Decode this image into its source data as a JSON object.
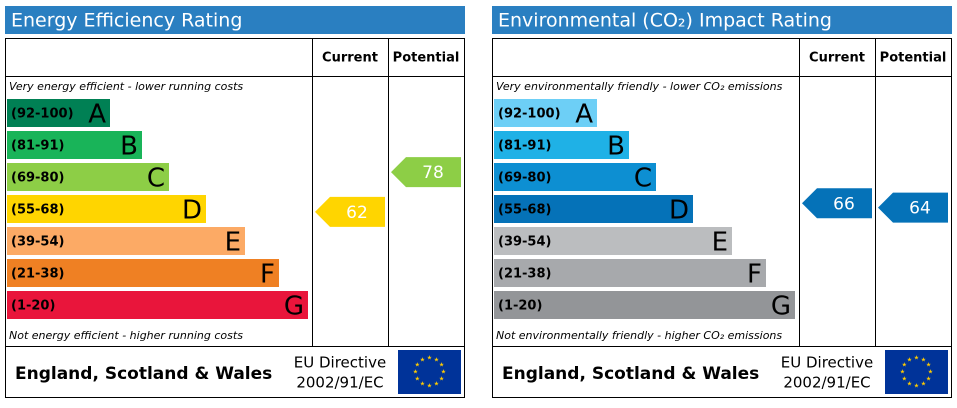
{
  "panels": [
    {
      "title": "Energy Efficiency Rating",
      "columns": [
        "Current",
        "Potential"
      ],
      "top_note": "Very energy efficient - lower running costs",
      "bottom_note": "Not energy efficient - higher running costs",
      "bands": [
        {
          "label": "(92-100)",
          "letter": "A",
          "min": 92,
          "max": 100,
          "color": "#008054"
        },
        {
          "label": "(81-91)",
          "letter": "B",
          "min": 81,
          "max": 91,
          "color": "#19b459"
        },
        {
          "label": "(69-80)",
          "letter": "C",
          "min": 69,
          "max": 80,
          "color": "#8dce46"
        },
        {
          "label": "(55-68)",
          "letter": "D",
          "min": 55,
          "max": 68,
          "color": "#ffd500"
        },
        {
          "label": "(39-54)",
          "letter": "E",
          "min": 39,
          "max": 54,
          "color": "#fcaa65"
        },
        {
          "label": "(21-38)",
          "letter": "F",
          "min": 21,
          "max": 38,
          "color": "#ef8023"
        },
        {
          "label": "(1-20)",
          "letter": "G",
          "min": 1,
          "max": 20,
          "color": "#e9153b"
        }
      ],
      "current": 62,
      "potential": 78,
      "footer": {
        "region": "England, Scotland & Wales",
        "directive": "EU Directive",
        "code": "2002/91/EC"
      }
    },
    {
      "title": "Environmental (CO₂) Impact Rating",
      "columns": [
        "Current",
        "Potential"
      ],
      "top_note": "Very environmentally friendly - lower CO₂ emissions",
      "bottom_note": "Not environmentally friendly - higher CO₂ emissions",
      "bands": [
        {
          "label": "(92-100)",
          "letter": "A",
          "min": 92,
          "max": 100,
          "color": "#6dcff6"
        },
        {
          "label": "(81-91)",
          "letter": "B",
          "min": 81,
          "max": 91,
          "color": "#1fb1e6"
        },
        {
          "label": "(69-80)",
          "letter": "C",
          "min": 69,
          "max": 80,
          "color": "#0d8fd2"
        },
        {
          "label": "(55-68)",
          "letter": "D",
          "min": 55,
          "max": 68,
          "color": "#0572b8"
        },
        {
          "label": "(39-54)",
          "letter": "E",
          "min": 39,
          "max": 54,
          "color": "#bbbdbf"
        },
        {
          "label": "(21-38)",
          "letter": "F",
          "min": 21,
          "max": 38,
          "color": "#a7a9ac"
        },
        {
          "label": "(1-20)",
          "letter": "G",
          "min": 1,
          "max": 20,
          "color": "#939598"
        }
      ],
      "current": 66,
      "potential": 64,
      "footer": {
        "region": "England, Scotland & Wales",
        "directive": "EU Directive",
        "code": "2002/91/EC"
      }
    }
  ]
}
